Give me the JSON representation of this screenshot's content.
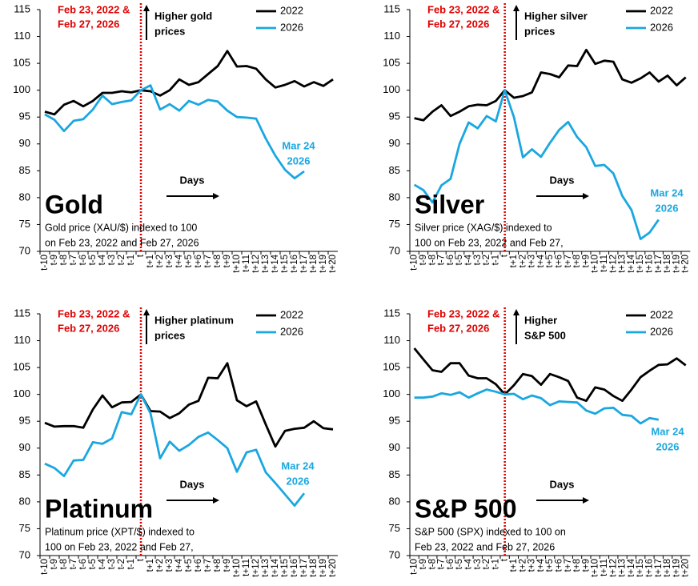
{
  "chart_data": [
    {
      "type": "line",
      "title": "Gold",
      "subtitle": [
        "Gold price (XAU/$) indexed to 100",
        "on Feb 23, 2022 and Feb 27, 2026"
      ],
      "marker_label": [
        "Feb 23, 2022 &",
        "Feb 27, 2026"
      ],
      "direction_label": [
        "Higher gold",
        "prices"
      ],
      "x_label": "Days",
      "end_label": [
        "Mar 24",
        "2026"
      ],
      "categories": [
        "t-10",
        "t-9",
        "t-8",
        "t-7",
        "t-6",
        "t-5",
        "t-4",
        "t-3",
        "t-2",
        "t-1",
        "t",
        "t+1",
        "t+2",
        "t+3",
        "t+4",
        "t+5",
        "t+6",
        "t+7",
        "t+8",
        "t+9",
        "t+10",
        "t+11",
        "t+12",
        "t+13",
        "t+14",
        "t+15",
        "t+16",
        "t+17",
        "t+18",
        "t+19",
        "t+20"
      ],
      "series": [
        {
          "name": "2022",
          "color": "#000000",
          "values": [
            96,
            95.5,
            97.3,
            98,
            97,
            98,
            99.5,
            99.5,
            99.8,
            99.6,
            100,
            99.8,
            99,
            100,
            102,
            101,
            101.5,
            103,
            104.5,
            107.3,
            104.4,
            104.5,
            104,
            102,
            100.5,
            101,
            101.7,
            100.7,
            101.5,
            100.8,
            102
          ]
        },
        {
          "name": "2026",
          "color": "#1aa7e0",
          "values": [
            95.5,
            94.5,
            92.4,
            94.3,
            94.6,
            96.4,
            99,
            97.4,
            97.8,
            98.1,
            100,
            100.9,
            96.4,
            97.4,
            96.2,
            98,
            97.3,
            98.2,
            97.9,
            96.2,
            95,
            94.9,
            94.7,
            91,
            87.8,
            85.2,
            83.6,
            84.9,
            null,
            null,
            null
          ]
        }
      ],
      "ylim": [
        70,
        115
      ],
      "yticks": [
        70,
        75,
        80,
        85,
        90,
        95,
        100,
        105,
        110,
        115
      ]
    },
    {
      "type": "line",
      "title": "Silver",
      "subtitle": [
        "Silver price (XAG/$) indexed to",
        "100 on Feb 23, 2022 and Feb 27,"
      ],
      "marker_label": [
        "Feb 23, 2022 &",
        "Feb 27, 2026"
      ],
      "direction_label": [
        "Higher silver",
        "prices"
      ],
      "x_label": "Days",
      "end_label": [
        "Mar 24",
        "2026"
      ],
      "categories": [
        "t-10",
        "t-9",
        "t-8",
        "t-7",
        "t-6",
        "t-5",
        "t-4",
        "t-3",
        "t-2",
        "t-1",
        "t",
        "t+1",
        "t+2",
        "t+3",
        "t+4",
        "t+5",
        "t+6",
        "t+7",
        "t+8",
        "t+9",
        "t+10",
        "t+11",
        "t+12",
        "t+13",
        "t+14",
        "t+15",
        "t+16",
        "t+17",
        "t+18",
        "t+19",
        "t+20"
      ],
      "series": [
        {
          "name": "2022",
          "color": "#000000",
          "values": [
            94.8,
            94.4,
            96,
            97.2,
            95.2,
            96,
            97,
            97.3,
            97.2,
            98,
            100,
            98.6,
            98.9,
            99.6,
            103.3,
            103,
            102.4,
            104.6,
            104.5,
            107.5,
            104.9,
            105.5,
            105.3,
            102,
            101.4,
            102.2,
            103.3,
            101.6,
            102.7,
            100.9,
            102.4
          ]
        },
        {
          "name": "2026",
          "color": "#1aa7e0",
          "values": [
            82.4,
            81.4,
            79.1,
            82.3,
            83.5,
            90,
            94,
            92.9,
            95.2,
            94.2,
            100,
            95,
            87.5,
            89,
            87.6,
            90.2,
            92.6,
            94.1,
            91.3,
            89.4,
            85.9,
            86.1,
            84.5,
            80.3,
            77.7,
            72.3,
            73.5,
            75.9,
            null,
            null,
            null
          ]
        }
      ],
      "ylim": [
        70,
        115
      ],
      "yticks": [
        70,
        75,
        80,
        85,
        90,
        95,
        100,
        105,
        110,
        115
      ]
    },
    {
      "type": "line",
      "title": "Platinum",
      "subtitle": [
        "Platinum price (XPT/$) indexed to",
        "100 on Feb 23, 2022 and Feb 27,"
      ],
      "marker_label": [
        "Feb 23, 2022 &",
        "Feb 27, 2026"
      ],
      "direction_label": [
        "Higher platinum",
        "prices"
      ],
      "x_label": "Days",
      "end_label": [
        "Mar 24",
        "2026"
      ],
      "categories": [
        "t-10",
        "t-9",
        "t-8",
        "t-7",
        "t-6",
        "t-5",
        "t-4",
        "t-3",
        "t-2",
        "t-1",
        "t",
        "t+1",
        "t+2",
        "t+3",
        "t+4",
        "t+5",
        "t+6",
        "t+7",
        "t+8",
        "t+9",
        "t+10",
        "t+11",
        "t+12",
        "t+13",
        "t+14",
        "t+15",
        "t+16",
        "t+17",
        "t+18",
        "t+19",
        "t+20"
      ],
      "series": [
        {
          "name": "2022",
          "color": "#000000",
          "values": [
            94.7,
            94,
            94.1,
            94.1,
            93.8,
            97.2,
            99.8,
            97.6,
            98.5,
            98.6,
            100,
            96.9,
            96.8,
            95.6,
            96.5,
            98.1,
            98.8,
            103.1,
            103,
            105.8,
            98.9,
            97.8,
            98.7,
            94.4,
            90.3,
            93.2,
            93.6,
            93.8,
            95,
            93.7,
            93.5
          ]
        },
        {
          "name": "2026",
          "color": "#1aa7e0",
          "values": [
            87.1,
            86.3,
            84.8,
            87.7,
            87.8,
            91.1,
            90.8,
            91.8,
            96.7,
            96.3,
            100,
            96.5,
            88.1,
            91.2,
            89.5,
            90.6,
            92.1,
            92.9,
            91.5,
            90,
            85.6,
            89.2,
            89.7,
            85.5,
            83.5,
            81.4,
            79.3,
            81.6,
            null,
            null,
            null
          ]
        }
      ],
      "ylim": [
        70,
        115
      ],
      "yticks": [
        70,
        75,
        80,
        85,
        90,
        95,
        100,
        105,
        110,
        115
      ]
    },
    {
      "type": "line",
      "title": "S&P 500",
      "subtitle": [
        "S&P 500 (SPX) indexed to 100 on",
        "Feb 23, 2022 and Feb 27, 2026"
      ],
      "marker_label": [
        "Feb 23, 2022 &",
        "Feb 27, 2026"
      ],
      "direction_label": [
        "Higher",
        "S&P 500"
      ],
      "x_label": "Days",
      "end_label": [
        "Mar 24",
        "2026"
      ],
      "categories": [
        "t-10",
        "t-9",
        "t-8",
        "t-7",
        "t-6",
        "t-5",
        "t-4",
        "t-3",
        "t-2",
        "t-1",
        "t",
        "t+1",
        "t+2",
        "t+3",
        "t+4",
        "t+5",
        "t+6",
        "t+7",
        "t+8",
        "t+9",
        "t+10",
        "t+11",
        "t+12",
        "t+13",
        "t+14",
        "t+15",
        "t+16",
        "t+17",
        "t+18",
        "t+19",
        "t+20"
      ],
      "series": [
        {
          "name": "2022",
          "color": "#000000",
          "values": [
            108.6,
            106.5,
            104.5,
            104.2,
            105.8,
            105.8,
            103.5,
            103,
            103,
            101.9,
            100,
            101.7,
            103.8,
            103.4,
            101.8,
            103.8,
            103.2,
            102.5,
            99.4,
            98.8,
            101.3,
            100.9,
            99.7,
            98.8,
            100.9,
            103.2,
            104.4,
            105.5,
            105.6,
            106.7,
            105.4
          ]
        },
        {
          "name": "2026",
          "color": "#1aa7e0",
          "values": [
            99.4,
            99.4,
            99.6,
            100.2,
            99.9,
            100.4,
            99.4,
            100.2,
            100.9,
            100.5,
            100,
            100.1,
            99.1,
            99.8,
            99.3,
            98,
            98.7,
            98.6,
            98.5,
            97,
            96.4,
            97.4,
            97.5,
            96.2,
            96,
            94.6,
            95.6,
            95.3,
            null,
            null,
            null
          ]
        }
      ],
      "ylim": [
        70,
        115
      ],
      "yticks": [
        70,
        75,
        80,
        85,
        90,
        95,
        100,
        105,
        110,
        115
      ]
    }
  ]
}
